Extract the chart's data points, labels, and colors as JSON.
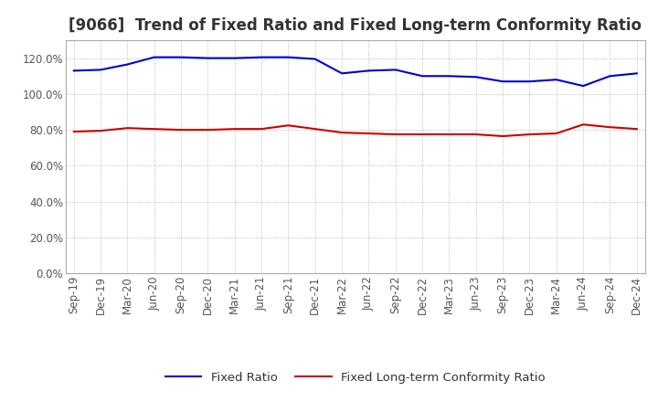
{
  "title": "[9066]  Trend of Fixed Ratio and Fixed Long-term Conformity Ratio",
  "x_labels": [
    "Sep-19",
    "Dec-19",
    "Mar-20",
    "Jun-20",
    "Sep-20",
    "Dec-20",
    "Mar-21",
    "Jun-21",
    "Sep-21",
    "Dec-21",
    "Mar-22",
    "Jun-22",
    "Sep-22",
    "Dec-22",
    "Mar-23",
    "Jun-23",
    "Sep-23",
    "Dec-23",
    "Mar-24",
    "Jun-24",
    "Sep-24",
    "Dec-24"
  ],
  "fixed_ratio": [
    113.0,
    113.5,
    116.5,
    120.5,
    120.5,
    120.0,
    120.0,
    120.5,
    120.5,
    119.5,
    111.5,
    113.0,
    113.5,
    110.0,
    110.0,
    109.5,
    107.0,
    107.0,
    108.0,
    104.5,
    110.0,
    111.5
  ],
  "fixed_lt_ratio": [
    79.0,
    79.5,
    81.0,
    80.5,
    80.0,
    80.0,
    80.5,
    80.5,
    82.5,
    80.5,
    78.5,
    78.0,
    77.5,
    77.5,
    77.5,
    77.5,
    76.5,
    77.5,
    78.0,
    83.0,
    81.5,
    80.5
  ],
  "fixed_ratio_color": "#0000cc",
  "fixed_lt_ratio_color": "#cc0000",
  "ylim": [
    0,
    130
  ],
  "yticks": [
    0,
    20,
    40,
    60,
    80,
    100,
    120
  ],
  "ytick_labels": [
    "0.0%",
    "20.0%",
    "40.0%",
    "60.0%",
    "80.0%",
    "100.0%",
    "120.0%"
  ],
  "grid_color": "#aaaaaa",
  "background_color": "#ffffff",
  "legend_fixed_ratio": "Fixed Ratio",
  "legend_fixed_lt_ratio": "Fixed Long-term Conformity Ratio",
  "title_fontsize": 12,
  "axis_fontsize": 8.5,
  "legend_fontsize": 9.5
}
